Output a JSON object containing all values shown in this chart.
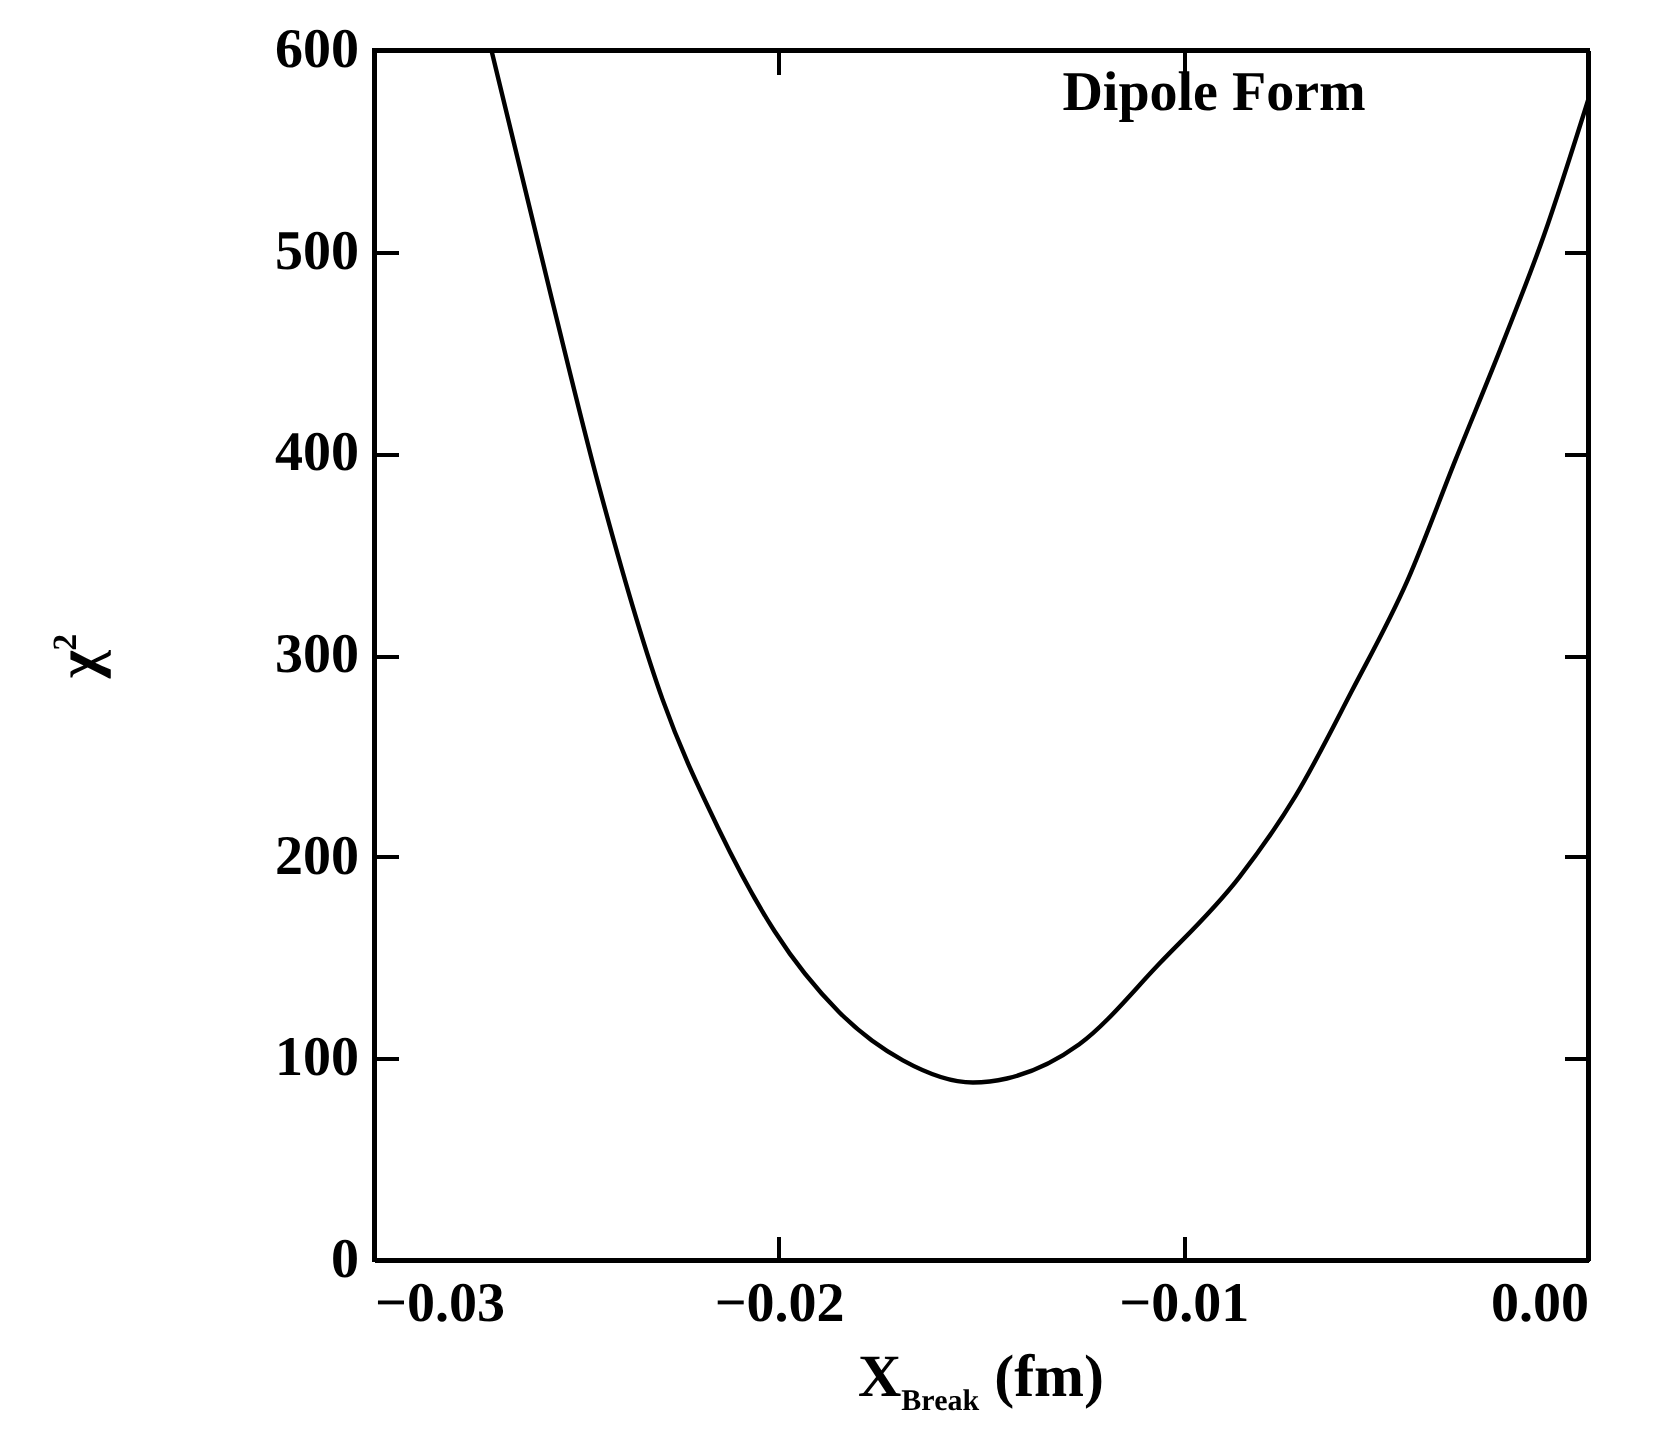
{
  "chart_data": {
    "type": "line",
    "title": "Dipole Form",
    "xlabel": "X$_{Break}$ (fm)",
    "ylabel": "χ$^{2}$",
    "x": [
      -0.0271,
      -0.0256,
      -0.02446,
      -0.02287,
      -0.02149,
      -0.0201,
      -0.01851,
      -0.01693,
      -0.0152,
      -0.01436,
      -0.01257,
      -0.01059,
      -0.00861,
      -0.00723,
      -0.00584,
      -0.00446,
      -0.00327,
      -0.00208,
      -0.00109,
      0
    ],
    "series": [
      {
        "color": "#000000",
        "values": [
          600,
          476,
          385,
          278,
          214,
          163,
          123,
          99,
          88,
          90,
          107,
          147,
          190,
          230,
          282,
          337,
          397,
          456,
          508,
          575
        ]
      }
    ],
    "xlim": [
      -0.03,
      0
    ],
    "ylim": [
      0,
      600
    ],
    "xticks": [
      {
        "value": -0.03,
        "label": "−0.03"
      },
      {
        "value": -0.02,
        "label": "−0.02"
      },
      {
        "value": -0.01,
        "label": "−0.01"
      },
      {
        "value": 0,
        "label": "0.00"
      }
    ],
    "yticks": [
      0,
      100,
      200,
      300,
      400,
      500,
      600
    ],
    "grid": false,
    "marker": "none",
    "line_style": "solid"
  }
}
